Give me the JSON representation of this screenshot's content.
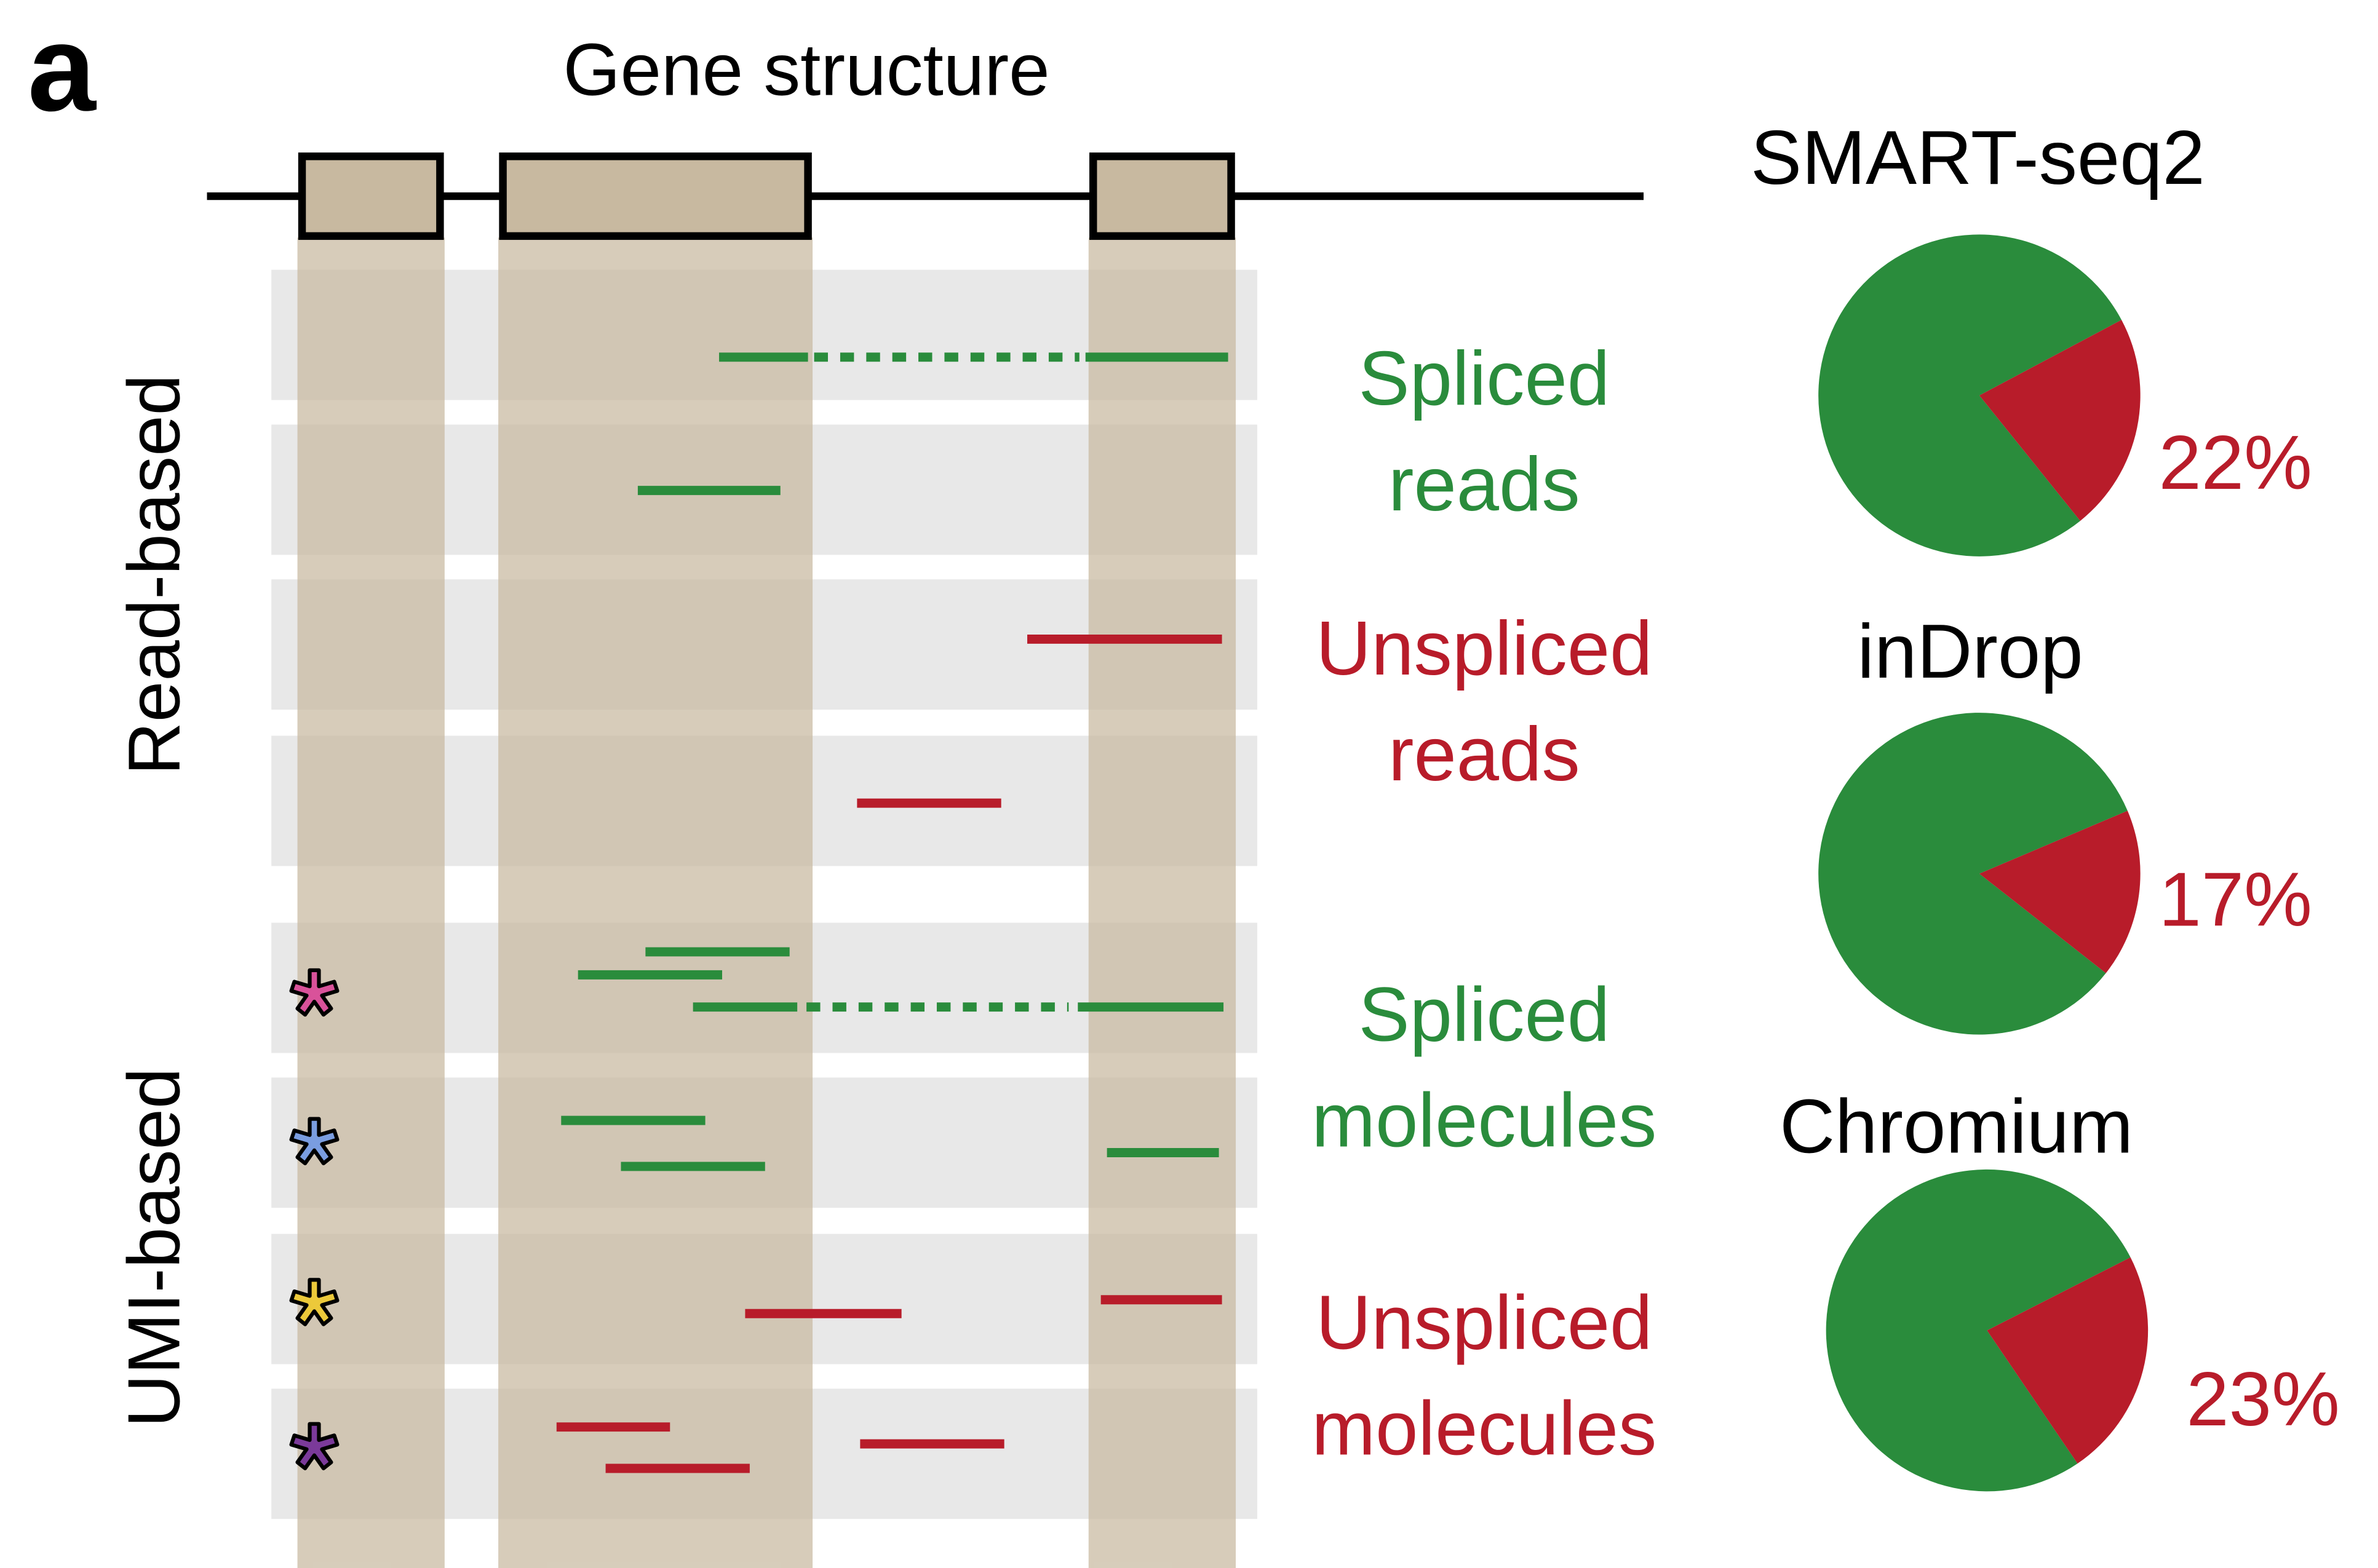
{
  "panel_label": "a",
  "gene_title": "Gene structure",
  "side_labels": {
    "read_based": "Read-based",
    "umi_based": "UMI-based"
  },
  "categories": {
    "spliced_reads": [
      "Spliced",
      "reads"
    ],
    "unspliced_reads": [
      "Unspliced",
      "reads"
    ],
    "spliced_molecules": [
      "Spliced",
      "molecules"
    ],
    "unspliced_molecules": [
      "Unspliced",
      "molecules"
    ]
  },
  "colors": {
    "spliced": "#2a8c3c",
    "unspliced": "#b81c2a",
    "exon": "#c8b9a0",
    "row_band": "#e8e8e8",
    "umi_stars": [
      "#d9529a",
      "#7a9de0",
      "#ecc93a",
      "#7b3a9a"
    ]
  },
  "icons": {
    "umi": "asterisk-icon"
  },
  "chart_data": {
    "type": "pie",
    "series_names": [
      "Spliced",
      "Unspliced"
    ],
    "pies": [
      {
        "title": "SMART-seq2",
        "unspliced_percent": 22,
        "label": "22%"
      },
      {
        "title": "inDrop",
        "unspliced_percent": 17,
        "label": "17%"
      },
      {
        "title": "Chromium",
        "unspliced_percent": 23,
        "label": "23%"
      }
    ]
  }
}
